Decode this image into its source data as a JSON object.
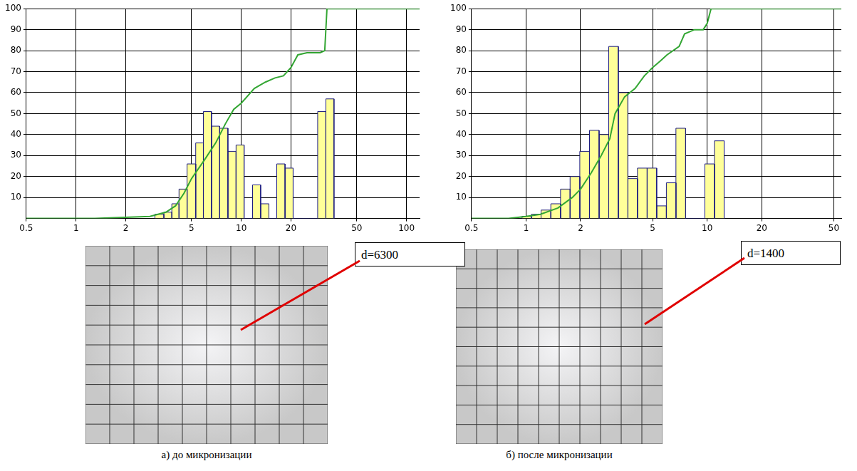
{
  "chart_data": [
    {
      "type": "histogram",
      "bins": [
        3.0,
        3.4,
        3.8,
        4.2,
        4.7,
        5.3,
        5.9,
        6.6,
        7.4,
        8.3,
        9.3,
        10.4,
        11.7,
        13.1,
        14.7,
        16.4,
        18.4,
        20.6,
        23.1,
        25.9,
        29,
        32.5,
        36.4
      ],
      "values": [
        2,
        3,
        7,
        14,
        26,
        36,
        51,
        44,
        43,
        32,
        35,
        0,
        16,
        7,
        0,
        26,
        24,
        0,
        0,
        0,
        51,
        57
      ],
      "color": "#ffff99",
      "series": [
        {
          "type": "line",
          "color": "#33a633",
          "x": [
            0.5,
            1.3,
            2.8,
            3.5,
            4,
            4.5,
            5,
            6,
            7,
            8,
            9,
            10,
            12,
            14,
            16,
            18,
            20,
            22,
            25,
            30,
            32,
            33,
            120
          ],
          "values": [
            0,
            0,
            1,
            3,
            6,
            12,
            19,
            28,
            36,
            45,
            52,
            55,
            62,
            65,
            67,
            68,
            72,
            78,
            79,
            79,
            80,
            100,
            100
          ]
        }
      ],
      "log": "x",
      "xlim": [
        0.5,
        120
      ],
      "xticks": [
        0.5,
        1,
        2,
        5,
        10,
        20,
        50,
        100
      ],
      "ylim": [
        0,
        100
      ],
      "yticks": [
        10,
        20,
        30,
        40,
        50,
        60,
        70,
        80,
        90,
        100
      ],
      "grid": true
    },
    {
      "type": "histogram",
      "bins": [
        0.95,
        1.07,
        1.21,
        1.37,
        1.55,
        1.75,
        1.98,
        2.24,
        2.53,
        2.86,
        3.23,
        3.65,
        4.12,
        4.66,
        5.26,
        5.95,
        6.72,
        7.6,
        8.58,
        9.7,
        10.96,
        12.4
      ],
      "values": [
        1,
        2,
        4,
        7,
        14,
        20,
        32,
        42,
        40,
        82,
        60,
        19,
        24,
        24,
        6,
        17,
        43,
        0,
        0,
        26,
        37
      ],
      "color": "#ffff99",
      "series": [
        {
          "type": "line",
          "color": "#33a633",
          "x": [
            0.5,
            0.8,
            1,
            1.2,
            1.5,
            1.8,
            2,
            2.3,
            2.6,
            2.9,
            3.1,
            3.5,
            4,
            4.5,
            5,
            5.5,
            6,
            7,
            7.5,
            8.5,
            9.5,
            10,
            10.5,
            55
          ],
          "values": [
            0,
            0,
            1,
            2,
            5,
            10,
            14,
            22,
            30,
            38,
            50,
            58,
            62,
            68,
            72,
            75,
            78,
            82,
            88,
            90,
            90,
            93,
            100,
            100
          ]
        }
      ],
      "log": "x",
      "xlim": [
        0.5,
        55
      ],
      "xticks": [
        0.5,
        1,
        2,
        5,
        10,
        20,
        50
      ],
      "ylim": [
        0,
        100
      ],
      "yticks": [
        10,
        20,
        30,
        40,
        50,
        60,
        70,
        80,
        90,
        100
      ],
      "grid": true
    }
  ],
  "panels": [
    {
      "caption": "а) до микронизации",
      "annotation": "d=6300"
    },
    {
      "caption": "б) после микронизации",
      "annotation": "d=1400"
    }
  ]
}
